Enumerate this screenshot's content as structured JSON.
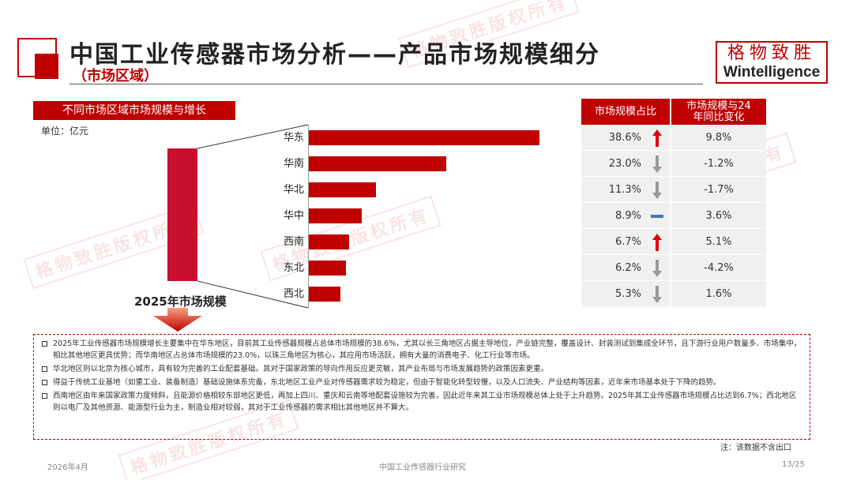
{
  "header": {
    "title": "中国工业传感器市场分析——产品市场规模细分",
    "subtitle": "（市场区域）"
  },
  "logo": {
    "cn": "格物致胜",
    "en": "Wintelligence"
  },
  "section": {
    "label": "不同市场区域市场规模与增长",
    "unit": "单位：亿元"
  },
  "total": {
    "label": "2025年市场规模"
  },
  "table": {
    "share_header": "市场规模占比",
    "growth_header": "市场规模与24年同比变化"
  },
  "chart_data": {
    "type": "bar",
    "orientation": "horizontal",
    "categories": [
      "华东",
      "华南",
      "华北",
      "华中",
      "西南",
      "东北",
      "西北"
    ],
    "values": [
      38.6,
      23.0,
      11.3,
      8.9,
      6.7,
      6.2,
      5.3
    ],
    "share_labels": [
      "38.6%",
      "23.0%",
      "11.3%",
      "8.9%",
      "6.7%",
      "6.2%",
      "5.3%"
    ],
    "growth_labels": [
      "9.8%",
      "-1.2%",
      "-1.7%",
      "3.6%",
      "5.1%",
      "-4.2%",
      "1.6%"
    ],
    "trend_icons": [
      "arrow-up-icon",
      "arrow-down-icon",
      "arrow-down-icon",
      "flat-dash-icon",
      "arrow-up-icon",
      "arrow-down-icon",
      "arrow-down-icon"
    ],
    "colors": {
      "bar": "#c00000",
      "up": "#e00000",
      "down": "#999999",
      "flat": "#4472c4"
    }
  },
  "notes": [
    "2025年工业传感器市场规模增长主要集中在华东地区，目前其工业传感器规模占总体市场规模的38.6%，尤其以长三角地区占据主导地位，产业链完整，覆盖设计、封装测试到集成全环节，且下游行业用户数量多、市场集中，相比其他地区更具优势；而华南地区占总体市场规模的23.0%，以珠三角地区为核心，其应用市场活跃，拥有大量的消费电子、化工行业等市场。",
    "华北地区则以北京为核心城市，具有较为完善的工业配套基础。其对于国家政策的导向作用反应更灵敏，其产业布局与市场发展趋势的政策因素更重。",
    "得益于传统工业基地（如重工业、装备制造）基础设施体系完备，东北地区工业产业对传感器需求较为稳定，但由于智能化转型较慢，以及人口流失、产业结构等因素，近年来市场基本处于下降的趋势。",
    "西南地区由年来国家政策力度倾斜，且能源价格相较东部地区更低，再加上四川、重庆和云南等地配套设施较为完善，因此近年来其工业市场规模总体上处于上升趋势。2025年其工业传感器市场规模占比达到6.7%；西北地区则以电厂及其他资源、能源型行业为主，制造业相对较弱，其对于工业传感器的需求相比其他地区并不算大。"
  ],
  "footnote": "注：该数据不含出口",
  "footer": {
    "date": "2026年4月",
    "center": "中国工业传感器行业研究",
    "page": "13/25"
  },
  "watermark": "格物致胜版权所有"
}
